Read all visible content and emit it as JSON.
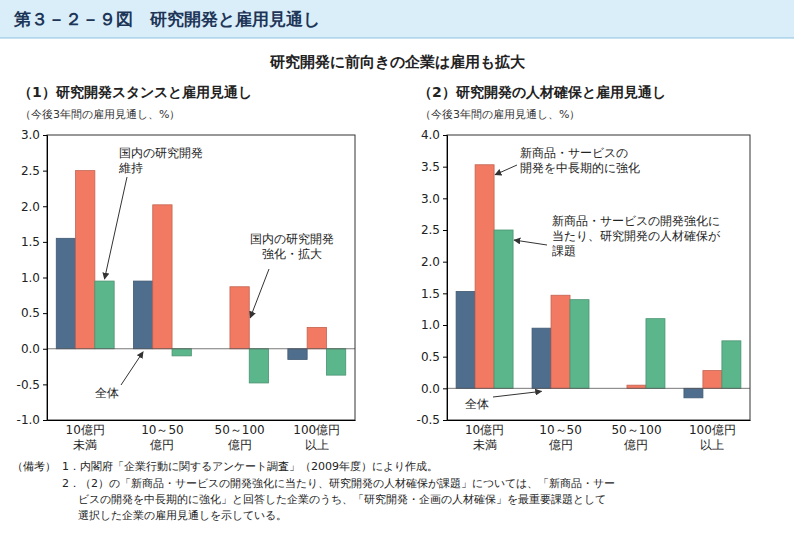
{
  "header": {
    "title": "第３－２－９図　研究開発と雇用見通し",
    "subtitle": "研究開発に前向きの企業は雇用も拡大"
  },
  "chart_data": [
    {
      "type": "bar",
      "title": "（1）研究開発スタンスと雇用見通し",
      "y_label": "（今後3年間の雇用見通し、%）",
      "categories": [
        "10億円\n未満",
        "10～50\n億円",
        "50～100\n億円",
        "100億円\n以上"
      ],
      "series": [
        {
          "name": "全体",
          "color": "#4f6e8e",
          "values": [
            1.55,
            0.95,
            0,
            -0.15
          ]
        },
        {
          "name": "国内の研究開発\n強化・拡大",
          "color": "#f27a62",
          "values": [
            2.5,
            2.02,
            0.87,
            0.3
          ]
        },
        {
          "name": "国内の研究開発\n維持",
          "color": "#5cb68c",
          "values": [
            0.95,
            -0.1,
            -0.48,
            -0.37
          ]
        }
      ],
      "ylim": [
        -1,
        3
      ],
      "yticks": [
        {
          "value": -1,
          "label": "-1.0"
        },
        {
          "value": -0.5,
          "label": "-0.5"
        },
        {
          "value": 0,
          "label": "0.0"
        },
        {
          "value": 0.5,
          "label": "0.5"
        },
        {
          "value": 1,
          "label": "1.0"
        },
        {
          "value": 1.5,
          "label": "1.5"
        },
        {
          "value": 2,
          "label": "2.0"
        },
        {
          "value": 2.5,
          "label": "2.5"
        },
        {
          "value": 3,
          "label": "3.0"
        }
      ],
      "grid": false
    },
    {
      "type": "bar",
      "title": "（2）研究開発の人材確保と雇用見通し",
      "y_label": "（今後3年間の雇用見通し、%）",
      "categories": [
        "10億円\n未満",
        "10～50\n億円",
        "50～100\n億円",
        "100億円\n以上"
      ],
      "series": [
        {
          "name": "全体",
          "color": "#4f6e8e",
          "values": [
            1.53,
            0.95,
            0,
            -0.15
          ]
        },
        {
          "name": "新商品・サービスの\n開発を中長期的に強化",
          "color": "#f27a62",
          "values": [
            3.53,
            1.47,
            0.05,
            0.28
          ]
        },
        {
          "name": "新商品・サービスの開発強化に\n当たり、研究開発の人材確保が\n課題",
          "color": "#5cb68c",
          "values": [
            2.5,
            1.4,
            1.1,
            0.75
          ]
        }
      ],
      "ylim": [
        -0.5,
        4
      ],
      "yticks": [
        {
          "value": -0.5,
          "label": "-0.5"
        },
        {
          "value": 0,
          "label": "0.0"
        },
        {
          "value": 0.5,
          "label": "0.5"
        },
        {
          "value": 1,
          "label": "1.0"
        },
        {
          "value": 1.5,
          "label": "1.5"
        },
        {
          "value": 2,
          "label": "2.0"
        },
        {
          "value": 2.5,
          "label": "2.5"
        },
        {
          "value": 3,
          "label": "3.0"
        },
        {
          "value": 3.5,
          "label": "3.5"
        },
        {
          "value": 4,
          "label": "4.0"
        }
      ],
      "grid": false
    }
  ],
  "notes": {
    "label": "（備考）",
    "items": [
      "1．内閣府「企業行動に関するアンケート調査」（2009年度）により作成。",
      "2．（2）の「新商品・サービスの開発強化に当たり、研究開発の人材確保が課題」については、「新商品・サー\nビスの開発を中長期的に強化」と回答した企業のうち、「研究開発・企画の人材確保」を最重要課題として\n選択した企業の雇用見通しを示している。"
    ]
  }
}
